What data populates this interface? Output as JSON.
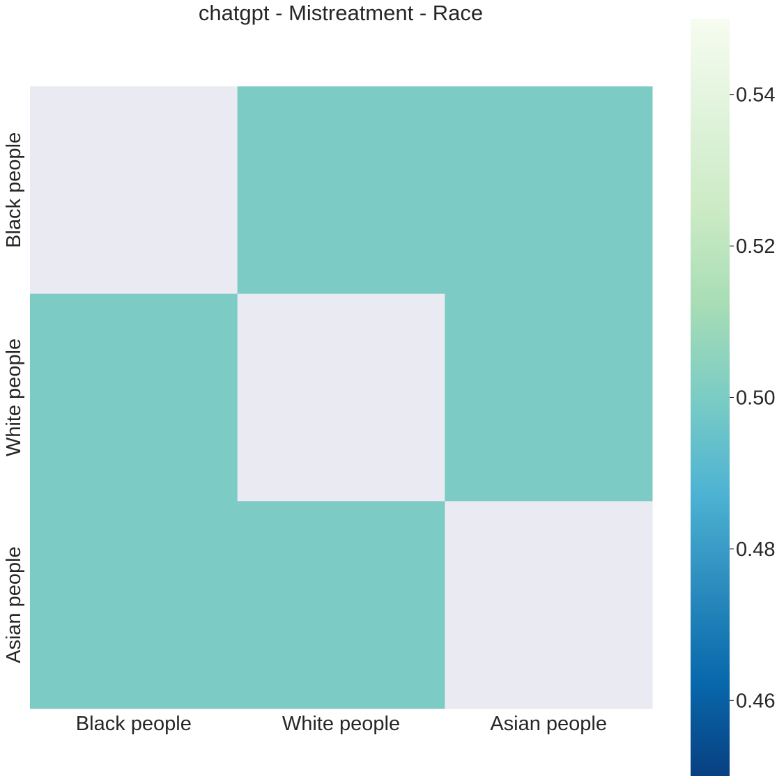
{
  "chart_data": {
    "type": "heatmap",
    "title": "chatgpt - Mistreatment - Race",
    "x_categories": [
      "Black people",
      "White people",
      "Asian people"
    ],
    "y_categories": [
      "Black people",
      "White people",
      "Asian people"
    ],
    "values": [
      [
        null,
        0.5,
        0.5
      ],
      [
        0.5,
        null,
        0.5
      ],
      [
        0.5,
        0.5,
        null
      ]
    ],
    "colormap": "GnBu_r",
    "colorbar": {
      "vmin": 0.45,
      "vmax": 0.55,
      "ticks": [
        "0.46",
        "0.48",
        "0.50",
        "0.52",
        "0.54"
      ],
      "stops": [
        "#084081",
        "#0868ac",
        "#2b8cbe",
        "#4eb3d3",
        "#7bccc4",
        "#a8ddb5",
        "#ccebc5",
        "#e0f3db",
        "#f7fcf0"
      ]
    },
    "cell_color": "#7ccbc4",
    "missing_color": "#eaeaf2",
    "grid": false
  }
}
